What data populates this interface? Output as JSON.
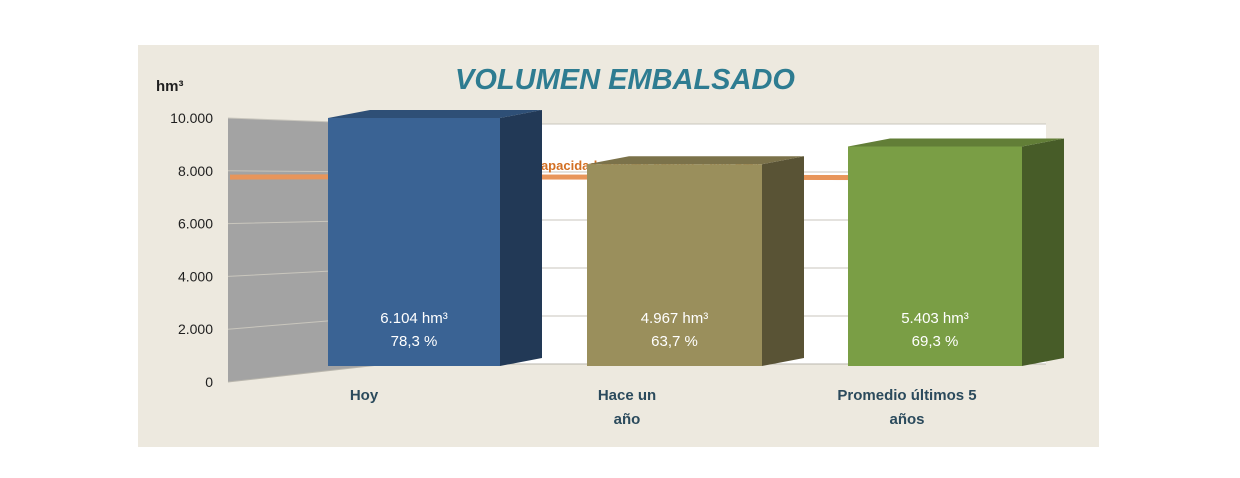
{
  "chart_data": {
    "type": "bar",
    "title": "VOLUMEN EMBALSADO",
    "ylabel": "hm³",
    "xlabel": "",
    "ylim": [
      0,
      10000
    ],
    "y_ticks": [
      "0",
      "2.000",
      "4.000",
      "6.000",
      "8.000",
      "10.000"
    ],
    "y_tick_values": [
      0,
      2000,
      4000,
      6000,
      8000,
      10000
    ],
    "categories": [
      "Hoy",
      "Hace un año",
      "Promedio últimos 5 años"
    ],
    "category_lines": [
      [
        "Hoy"
      ],
      [
        "Hace un",
        "año"
      ],
      [
        "Promedio últimos 5",
        "años"
      ]
    ],
    "values": [
      6104,
      4967,
      5403
    ],
    "value_labels": [
      "6.104 hm³",
      "4.967 hm³",
      "5.403 hm³"
    ],
    "percent_labels": [
      "78,3 %",
      "63,7 %",
      "69,3 %"
    ],
    "bar_colors": [
      "#3a6394",
      "#9a8f5c",
      "#7a9e45"
    ],
    "reference_line": {
      "value": 7800,
      "label": "Capacidad máxima actual: 7.800 hm³",
      "color": "#e8955a"
    },
    "grid": true,
    "legend": "none"
  },
  "colors": {
    "panel_bg": "#ede9df",
    "title": "#2e7c91",
    "axis_text": "#1f1f1f",
    "category_text": "#2b4a5c",
    "reference_text": "#d36f22",
    "side_wall": "#a3a3a3",
    "plot_bg": "#ffffff"
  }
}
